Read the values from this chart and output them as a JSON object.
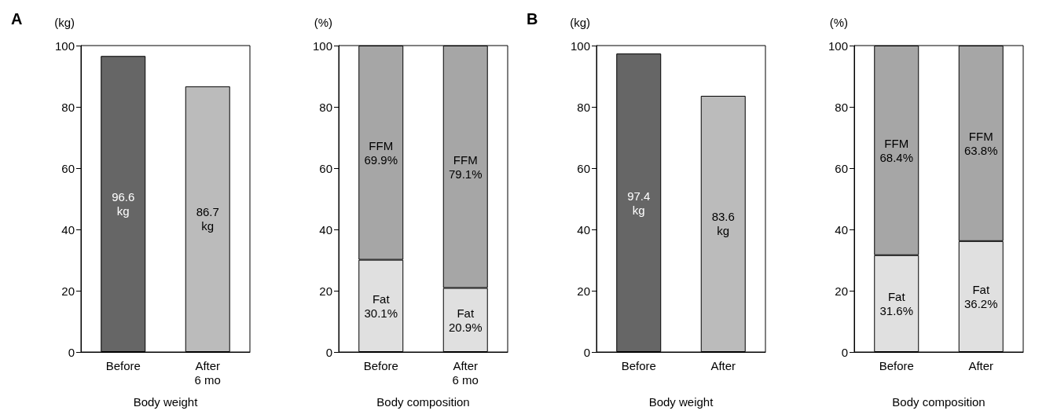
{
  "chart_data": [
    {
      "type": "bar",
      "ylabel": "(kg)",
      "xlabel": "Body weight",
      "annotations": [
        "A"
      ],
      "categories": [
        "Before",
        "After\n6 mo"
      ],
      "values": [
        96.6,
        86.7
      ],
      "colors": [
        "#666666",
        "#bbbbbb"
      ],
      "value_labels": [
        "96.6\nkg",
        "86.7\nkg"
      ],
      "ylim": [
        0,
        100
      ],
      "yticks": [
        0,
        20,
        40,
        60,
        80,
        100
      ]
    },
    {
      "type": "bar",
      "stacked": true,
      "ylabel": "(%)",
      "xlabel": "Body composition",
      "categories": [
        "Before",
        "After\n6 mo"
      ],
      "series": [
        {
          "color": "#e0e0e0",
          "values": [
            30.1,
            20.9
          ],
          "value_labels": [
            "Fat\n30.1%",
            "Fat\n20.9%"
          ]
        },
        {
          "color": "#a6a6a6",
          "values": [
            69.9,
            79.1
          ],
          "value_labels": [
            "FFM\n69.9%",
            "FFM\n79.1%"
          ]
        }
      ],
      "ylim": [
        0,
        100
      ],
      "yticks": [
        0,
        20,
        40,
        60,
        80,
        100
      ]
    },
    {
      "type": "bar",
      "ylabel": "(kg)",
      "xlabel": "Body weight",
      "annotations": [
        "B"
      ],
      "categories": [
        "Before",
        "After"
      ],
      "values": [
        97.4,
        83.6
      ],
      "colors": [
        "#666666",
        "#bbbbbb"
      ],
      "value_labels": [
        "97.4\nkg",
        "83.6\nkg"
      ],
      "ylim": [
        0,
        100
      ],
      "yticks": [
        0,
        20,
        40,
        60,
        80,
        100
      ]
    },
    {
      "type": "bar",
      "stacked": true,
      "ylabel": "(%)",
      "xlabel": "Body composition",
      "categories": [
        "Before",
        "After"
      ],
      "series": [
        {
          "color": "#e0e0e0",
          "values": [
            31.6,
            36.2
          ],
          "value_labels": [
            "Fat\n31.6%",
            "Fat\n36.2%"
          ]
        },
        {
          "color": "#a6a6a6",
          "values": [
            68.4,
            63.8
          ],
          "value_labels": [
            "FFM\n68.4%",
            "FFM\n63.8%"
          ]
        }
      ],
      "ylim": [
        0,
        100
      ],
      "yticks": [
        0,
        20,
        40,
        60,
        80,
        100
      ]
    }
  ]
}
